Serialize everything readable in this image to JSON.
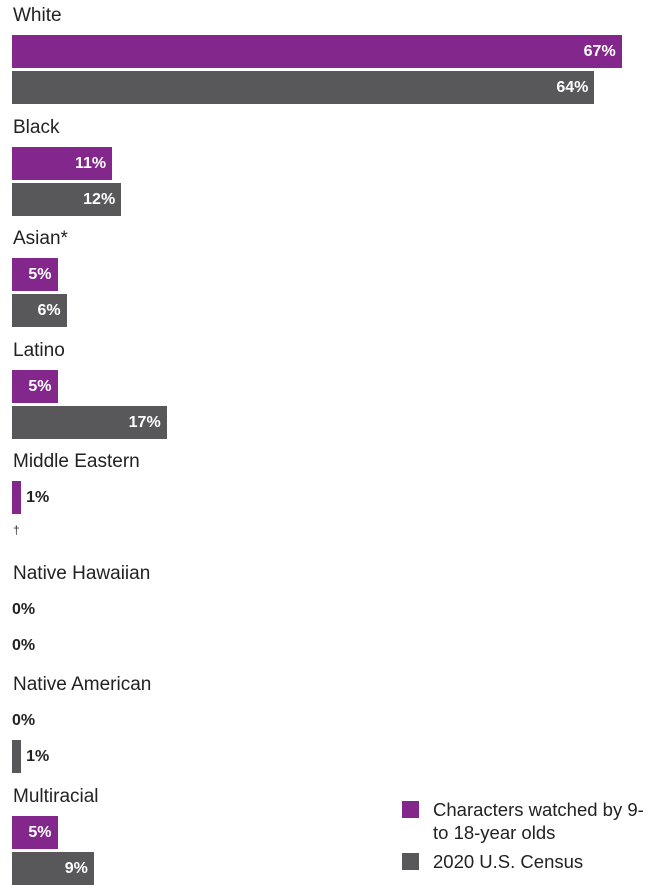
{
  "colors": {
    "characters": "#84278c",
    "census": "#58585a"
  },
  "chart_data": {
    "type": "bar",
    "orientation": "horizontal",
    "categories": [
      "White",
      "Black",
      "Asian*",
      "Latino",
      "Middle Eastern",
      "Native Hawaiian",
      "Native American",
      "Multiracial"
    ],
    "series": [
      {
        "name": "Characters watched by 9- to 18-year olds",
        "values": [
          67,
          11,
          5,
          5,
          1,
          0,
          0,
          5
        ]
      },
      {
        "name": "2020 U.S. Census",
        "values": [
          64,
          12,
          6,
          17,
          null,
          0,
          1,
          9
        ]
      }
    ],
    "value_labels": [
      [
        "67%",
        "64%"
      ],
      [
        "11%",
        "12%"
      ],
      [
        "5%",
        "6%"
      ],
      [
        "5%",
        "17%"
      ],
      [
        "1%",
        null
      ],
      [
        "0%",
        "0%"
      ],
      [
        "0%",
        "1%"
      ],
      [
        "5%",
        "9%"
      ]
    ],
    "annotations": [
      {
        "category": "Middle Eastern",
        "series": "2020 U.S. Census",
        "text": "†"
      }
    ],
    "legend_position": "bottom-right",
    "grid": false,
    "xlim": [
      0,
      67
    ]
  }
}
